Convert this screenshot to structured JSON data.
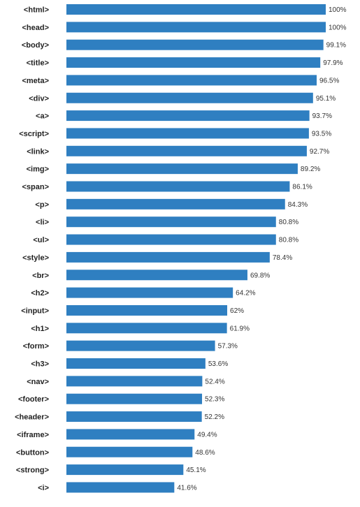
{
  "chart_data": {
    "type": "bar",
    "orientation": "horizontal",
    "categories": [
      "<html>",
      "<head>",
      "<body>",
      "<title>",
      "<meta>",
      "<div>",
      "<a>",
      "<script>",
      "<link>",
      "<img>",
      "<span>",
      "<p>",
      "<li>",
      "<ul>",
      "<style>",
      "<br>",
      "<h2>",
      "<input>",
      "<h1>",
      "<form>",
      "<h3>",
      "<nav>",
      "<footer>",
      "<header>",
      "<iframe>",
      "<button>",
      "<strong>",
      "<i>"
    ],
    "values": [
      100,
      100,
      99.1,
      97.9,
      96.5,
      95.1,
      93.7,
      93.5,
      92.7,
      89.2,
      86.1,
      84.3,
      80.8,
      80.8,
      78.4,
      69.8,
      64.2,
      62,
      61.9,
      57.3,
      53.6,
      52.4,
      52.3,
      52.2,
      49.4,
      48.6,
      45.1,
      41.6
    ],
    "value_labels": [
      "100%",
      "100%",
      "99.1%",
      "97.9%",
      "96.5%",
      "95.1%",
      "93.7%",
      "93.5%",
      "92.7%",
      "89.2%",
      "86.1%",
      "84.3%",
      "80.8%",
      "80.8%",
      "78.4%",
      "69.8%",
      "64.2%",
      "62%",
      "61.9%",
      "57.3%",
      "53.6%",
      "52.4%",
      "52.3%",
      "52.2%",
      "49.4%",
      "48.6%",
      "45.1%",
      "41.6%"
    ],
    "title": "",
    "xlabel": "",
    "ylabel": "",
    "xlim": [
      0,
      100
    ],
    "grid": false,
    "legend": "none",
    "bar_color": "#2f7fc1"
  }
}
